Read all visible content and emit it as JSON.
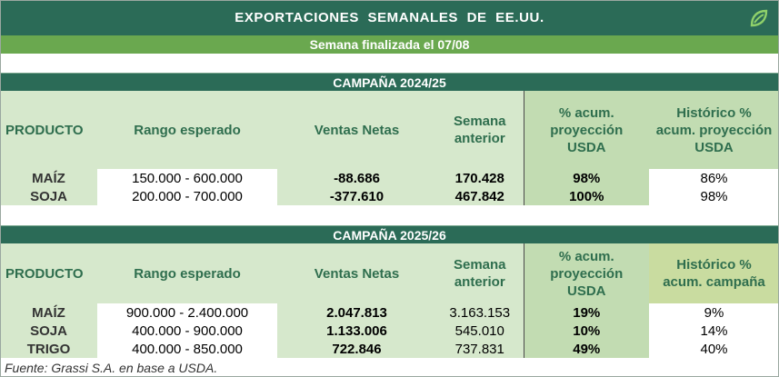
{
  "header": {
    "title": "EXPORTACIONES  SEMANALES  DE  EE.UU.",
    "subtitle": "Semana finalizada el 07/08"
  },
  "campaigns": [
    {
      "label": "CAMPAÑA 2024/25",
      "columns": [
        "PRODUCTO",
        "Rango esperado",
        "Ventas Netas",
        "Semana anterior",
        "% acum. proyección USDA",
        "Histórico % acum. proyección USDA"
      ],
      "rows": [
        {
          "producto": "MAÍZ",
          "rango": "150.000 - 600.000",
          "ventas": "-88.686",
          "anterior": "170.428",
          "acum": "98%",
          "historico": "86%"
        },
        {
          "producto": "SOJA",
          "rango": "200.000 - 700.000",
          "ventas": "-377.610",
          "anterior": "467.842",
          "acum": "100%",
          "historico": "98%"
        }
      ]
    },
    {
      "label": "CAMPAÑA 2025/26",
      "columns": [
        "PRODUCTO",
        "Rango esperado",
        "Ventas Netas",
        "Semana anterior",
        "% acum. proyección USDA",
        "Histórico % acum. campaña"
      ],
      "rows": [
        {
          "producto": "MAÍZ",
          "rango": "900.000 - 2.400.000",
          "ventas": "2.047.813",
          "anterior": "3.163.153",
          "acum": "19%",
          "historico": "9%"
        },
        {
          "producto": "SOJA",
          "rango": "400.000 - 900.000",
          "ventas": "1.133.006",
          "anterior": "545.010",
          "acum": "10%",
          "historico": "14%"
        },
        {
          "producto": "TRIGO",
          "rango": "400.000 - 850.000",
          "ventas": "722.846",
          "anterior": "737.831",
          "acum": "49%",
          "historico": "40%"
        }
      ]
    }
  ],
  "footnote": "Fuente: Grassi S.A. en base a USDA.",
  "colors": {
    "dark_green": "#2b6b57",
    "bright_green": "#6aa84f",
    "light_green": "#d6e8cc",
    "header_text": "#2f6e4e"
  },
  "icons": {
    "logo": "leaf-logo-icon"
  }
}
